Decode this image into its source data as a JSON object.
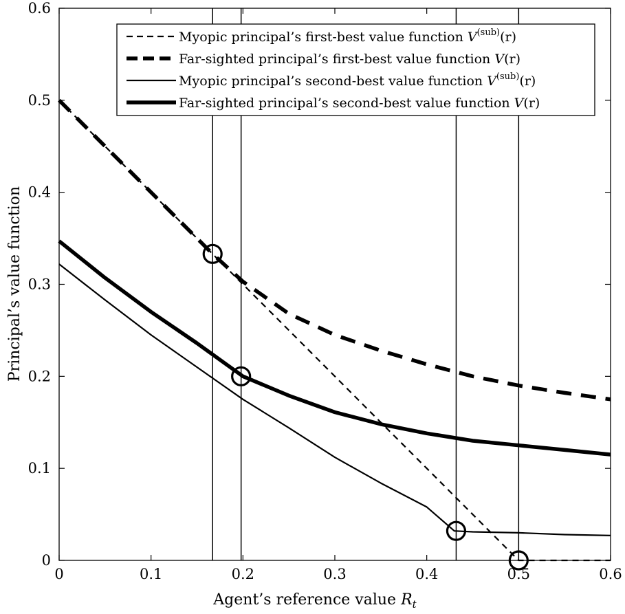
{
  "chart_data": {
    "type": "line",
    "xlabel": "Agent’s reference value ",
    "xlabel_symbol": "R",
    "xlabel_subscript": "t",
    "ylabel": "Principal’s value function",
    "xlim": [
      0,
      0.6
    ],
    "ylim": [
      0,
      0.6
    ],
    "xticks": [
      "0",
      "0.1",
      "0.2",
      "0.3",
      "0.4",
      "0.5",
      "0.6"
    ],
    "yticks": [
      "0",
      "0.1",
      "0.2",
      "0.3",
      "0.4",
      "0.5",
      "0.6"
    ],
    "grid": false,
    "legend_position": "top-right",
    "series": [
      {
        "name": "Myopic principal’s first-best value function ",
        "math": "V",
        "superscript": "(sub)",
        "suffix": "(r)",
        "style": "dashed-thin",
        "color": "#000000",
        "x": [
          0,
          0.05,
          0.1,
          0.15,
          0.2,
          0.25,
          0.3,
          0.35,
          0.4,
          0.45,
          0.5,
          0.55,
          0.6
        ],
        "y": [
          0.5,
          0.45,
          0.4,
          0.35,
          0.3,
          0.25,
          0.2,
          0.15,
          0.1,
          0.05,
          0.0,
          0.0,
          0.0
        ]
      },
      {
        "name": "Far-sighted principal’s first-best value function ",
        "math": "V",
        "superscript": "",
        "suffix": "(r)",
        "style": "dashed-thick",
        "color": "#000000",
        "x": [
          0,
          0.05,
          0.1,
          0.15,
          0.167,
          0.2,
          0.25,
          0.3,
          0.35,
          0.4,
          0.45,
          0.5,
          0.55,
          0.6
        ],
        "y": [
          0.5,
          0.45,
          0.4,
          0.35,
          0.333,
          0.303,
          0.268,
          0.245,
          0.228,
          0.213,
          0.2,
          0.19,
          0.182,
          0.175
        ]
      },
      {
        "name": "Myopic principal’s second-best value function ",
        "math": "V",
        "superscript": "(sub)",
        "suffix": "(r)",
        "style": "solid-thin",
        "color": "#000000",
        "x": [
          0,
          0.05,
          0.1,
          0.15,
          0.2,
          0.25,
          0.3,
          0.35,
          0.4,
          0.43,
          0.45,
          0.5,
          0.55,
          0.6
        ],
        "y": [
          0.322,
          0.283,
          0.245,
          0.21,
          0.175,
          0.144,
          0.112,
          0.084,
          0.058,
          0.032,
          0.031,
          0.03,
          0.028,
          0.027
        ]
      },
      {
        "name": "Far-sighted principal’s second-best value function ",
        "math": "V",
        "superscript": "",
        "suffix": "(r)",
        "style": "solid-thick",
        "color": "#000000",
        "x": [
          0,
          0.05,
          0.1,
          0.15,
          0.2,
          0.25,
          0.3,
          0.35,
          0.4,
          0.45,
          0.5,
          0.55,
          0.6
        ],
        "y": [
          0.347,
          0.307,
          0.27,
          0.236,
          0.2,
          0.179,
          0.161,
          0.148,
          0.138,
          0.13,
          0.125,
          0.12,
          0.115
        ]
      }
    ],
    "vertical_lines": [
      0.167,
      0.198,
      0.432,
      0.5
    ],
    "markers": [
      {
        "x": 0.167,
        "y": 0.333
      },
      {
        "x": 0.198,
        "y": 0.2
      },
      {
        "x": 0.432,
        "y": 0.032
      },
      {
        "x": 0.5,
        "y": 0.0
      }
    ]
  }
}
